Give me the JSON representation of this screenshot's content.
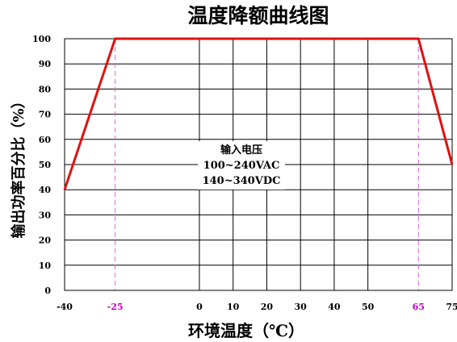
{
  "chart_data": {
    "type": "line",
    "title": "温度降额曲线图",
    "xlabel": "环境温度（℃）",
    "ylabel": "输出功率百分比（%）",
    "x_ticks": [
      -40,
      -25,
      0,
      10,
      20,
      30,
      40,
      50,
      65,
      75
    ],
    "x_tick_labels": [
      "-40",
      "-25",
      "0",
      "10",
      "20",
      "30",
      "40",
      "50",
      "65",
      "75"
    ],
    "highlighted_x_ticks": [
      -25,
      65
    ],
    "y_ticks": [
      0,
      10,
      20,
      30,
      40,
      50,
      60,
      70,
      80,
      90,
      100
    ],
    "y_tick_labels": [
      "0",
      "10",
      "20",
      "30",
      "40",
      "50",
      "60",
      "70",
      "80",
      "90",
      "100"
    ],
    "xlim": [
      -40,
      75
    ],
    "ylim": [
      0,
      100
    ],
    "grid": true,
    "series": [
      {
        "x": [
          -40,
          -25,
          65,
          75
        ],
        "y": [
          40,
          100,
          100,
          50
        ]
      }
    ],
    "reference_lines_x": [
      -25,
      65
    ],
    "annotation": [
      "输入电压",
      "100~240VAC",
      "140~340VDC"
    ],
    "colors": {
      "line": "#e01010",
      "reference": "#e060e0",
      "highlight_tick": "#c000c0",
      "grid": "#000000"
    }
  }
}
